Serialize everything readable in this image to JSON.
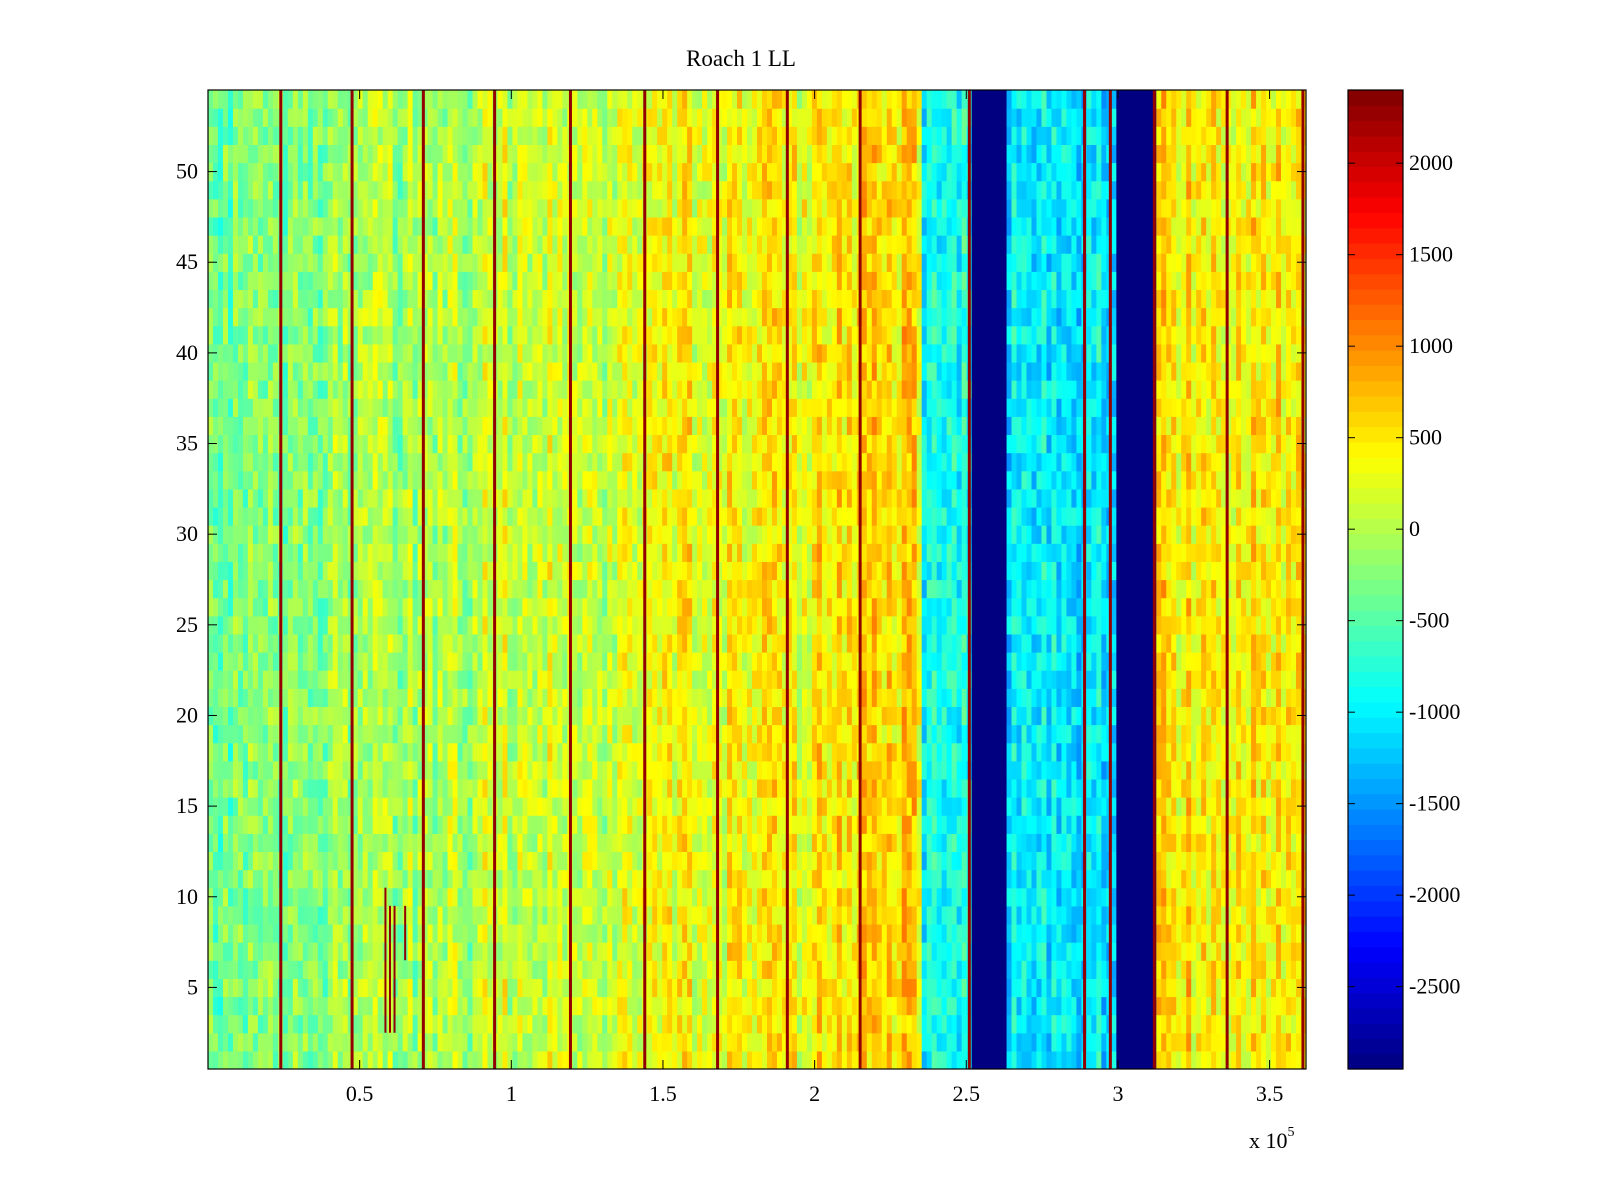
{
  "chart_data": {
    "type": "heatmap",
    "title": "Roach 1 LL",
    "xlabel": "",
    "ylabel": "",
    "x_range": [
      0,
      362000
    ],
    "y_range": [
      0.5,
      54.5
    ],
    "x_ticks": [
      50000,
      100000,
      150000,
      200000,
      250000,
      300000,
      350000
    ],
    "x_tick_labels": [
      "0.5",
      "1",
      "1.5",
      "2",
      "2.5",
      "3",
      "3.5"
    ],
    "x_exponent_label": {
      "base": "x 10",
      "exponent": "5"
    },
    "y_ticks": [
      5,
      10,
      15,
      20,
      25,
      30,
      35,
      40,
      45,
      50
    ],
    "y_tick_labels": [
      "5",
      "10",
      "15",
      "20",
      "25",
      "30",
      "35",
      "40",
      "45",
      "50"
    ],
    "rows": 54,
    "colormap": "jet",
    "clim": [
      -2950,
      2400
    ],
    "colorbar": {
      "ticks": [
        -2500,
        -2000,
        -1500,
        -1000,
        -500,
        0,
        500,
        1000,
        1500,
        2000
      ],
      "tick_labels": [
        "-2500",
        "-2000",
        "-1500",
        "-1000",
        "-500",
        "0",
        "500",
        "1000",
        "1500",
        "2000"
      ]
    },
    "column_band_means": [
      {
        "x_start": 0,
        "x_end": 40000,
        "mean": -350
      },
      {
        "x_start": 40000,
        "x_end": 90000,
        "mean": -50
      },
      {
        "x_start": 90000,
        "x_end": 150000,
        "mean": 150
      },
      {
        "x_start": 150000,
        "x_end": 200000,
        "mean": 350
      },
      {
        "x_start": 200000,
        "x_end": 236000,
        "mean": 550
      },
      {
        "x_start": 236000,
        "x_end": 252000,
        "mean": -900
      },
      {
        "x_start": 252000,
        "x_end": 263000,
        "mean": -2950
      },
      {
        "x_start": 263000,
        "x_end": 300000,
        "mean": -1000
      },
      {
        "x_start": 300000,
        "x_end": 312000,
        "mean": -2950
      },
      {
        "x_start": 312000,
        "x_end": 362000,
        "mean": 500
      }
    ],
    "vertical_spike_lines_x": [
      24000,
      47500,
      71000,
      94500,
      119500,
      144000,
      168000,
      191000,
      215000,
      251000,
      289000,
      297500,
      312000,
      336000,
      361000
    ],
    "spike_value": 2300,
    "short_spikes": [
      {
        "x": 58500,
        "y_min": 2.5,
        "y_max": 10.5
      },
      {
        "x": 60000,
        "y_min": 2.5,
        "y_max": 9.5
      },
      {
        "x": 61500,
        "y_min": 2.5,
        "y_max": 9.5
      },
      {
        "x": 65000,
        "y_min": 6.5,
        "y_max": 9.5
      }
    ]
  }
}
